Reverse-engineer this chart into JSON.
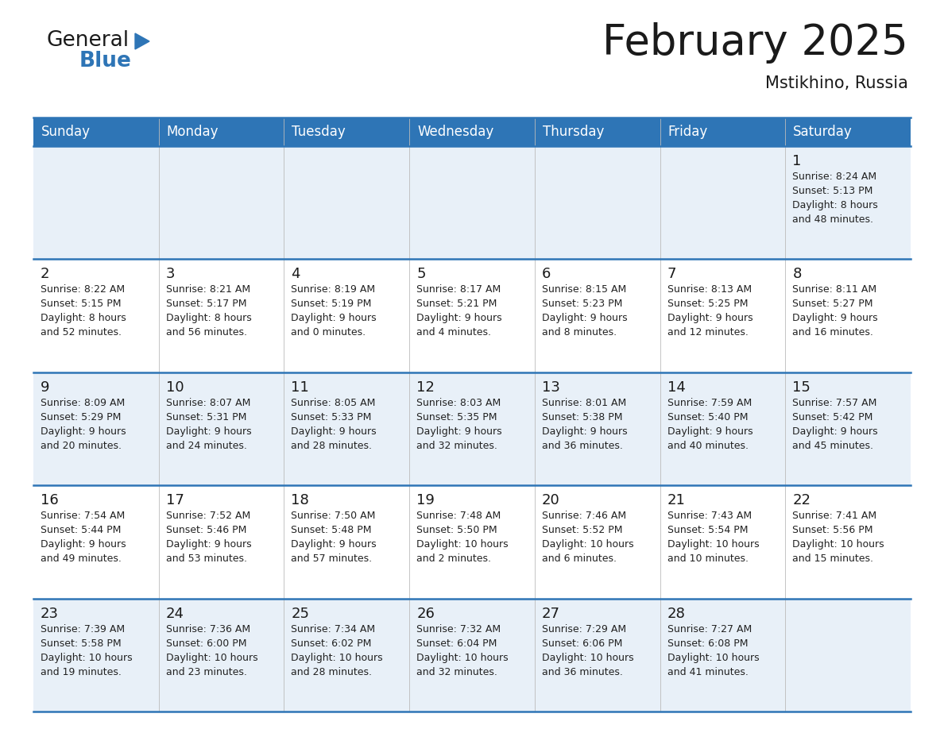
{
  "title": "February 2025",
  "subtitle": "Mstikhino, Russia",
  "header_color": "#2e75b6",
  "header_text_color": "#ffffff",
  "days_of_week": [
    "Sunday",
    "Monday",
    "Tuesday",
    "Wednesday",
    "Thursday",
    "Friday",
    "Saturday"
  ],
  "bg_color": "#ffffff",
  "cell_bg_odd": "#e8f0f8",
  "cell_bg_even": "#ffffff",
  "day_number_color": "#1a1a1a",
  "info_text_color": "#222222",
  "line_color": "#2e75b6",
  "separator_color": "#2e75b6",
  "calendar": [
    [
      null,
      null,
      null,
      null,
      null,
      null,
      {
        "day": 1,
        "sunrise": "8:24 AM",
        "sunset": "5:13 PM",
        "daylight": "8 hours and 48 minutes."
      }
    ],
    [
      {
        "day": 2,
        "sunrise": "8:22 AM",
        "sunset": "5:15 PM",
        "daylight": "8 hours and 52 minutes."
      },
      {
        "day": 3,
        "sunrise": "8:21 AM",
        "sunset": "5:17 PM",
        "daylight": "8 hours and 56 minutes."
      },
      {
        "day": 4,
        "sunrise": "8:19 AM",
        "sunset": "5:19 PM",
        "daylight": "9 hours and 0 minutes."
      },
      {
        "day": 5,
        "sunrise": "8:17 AM",
        "sunset": "5:21 PM",
        "daylight": "9 hours and 4 minutes."
      },
      {
        "day": 6,
        "sunrise": "8:15 AM",
        "sunset": "5:23 PM",
        "daylight": "9 hours and 8 minutes."
      },
      {
        "day": 7,
        "sunrise": "8:13 AM",
        "sunset": "5:25 PM",
        "daylight": "9 hours and 12 minutes."
      },
      {
        "day": 8,
        "sunrise": "8:11 AM",
        "sunset": "5:27 PM",
        "daylight": "9 hours and 16 minutes."
      }
    ],
    [
      {
        "day": 9,
        "sunrise": "8:09 AM",
        "sunset": "5:29 PM",
        "daylight": "9 hours and 20 minutes."
      },
      {
        "day": 10,
        "sunrise": "8:07 AM",
        "sunset": "5:31 PM",
        "daylight": "9 hours and 24 minutes."
      },
      {
        "day": 11,
        "sunrise": "8:05 AM",
        "sunset": "5:33 PM",
        "daylight": "9 hours and 28 minutes."
      },
      {
        "day": 12,
        "sunrise": "8:03 AM",
        "sunset": "5:35 PM",
        "daylight": "9 hours and 32 minutes."
      },
      {
        "day": 13,
        "sunrise": "8:01 AM",
        "sunset": "5:38 PM",
        "daylight": "9 hours and 36 minutes."
      },
      {
        "day": 14,
        "sunrise": "7:59 AM",
        "sunset": "5:40 PM",
        "daylight": "9 hours and 40 minutes."
      },
      {
        "day": 15,
        "sunrise": "7:57 AM",
        "sunset": "5:42 PM",
        "daylight": "9 hours and 45 minutes."
      }
    ],
    [
      {
        "day": 16,
        "sunrise": "7:54 AM",
        "sunset": "5:44 PM",
        "daylight": "9 hours and 49 minutes."
      },
      {
        "day": 17,
        "sunrise": "7:52 AM",
        "sunset": "5:46 PM",
        "daylight": "9 hours and 53 minutes."
      },
      {
        "day": 18,
        "sunrise": "7:50 AM",
        "sunset": "5:48 PM",
        "daylight": "9 hours and 57 minutes."
      },
      {
        "day": 19,
        "sunrise": "7:48 AM",
        "sunset": "5:50 PM",
        "daylight": "10 hours and 2 minutes."
      },
      {
        "day": 20,
        "sunrise": "7:46 AM",
        "sunset": "5:52 PM",
        "daylight": "10 hours and 6 minutes."
      },
      {
        "day": 21,
        "sunrise": "7:43 AM",
        "sunset": "5:54 PM",
        "daylight": "10 hours and 10 minutes."
      },
      {
        "day": 22,
        "sunrise": "7:41 AM",
        "sunset": "5:56 PM",
        "daylight": "10 hours and 15 minutes."
      }
    ],
    [
      {
        "day": 23,
        "sunrise": "7:39 AM",
        "sunset": "5:58 PM",
        "daylight": "10 hours and 19 minutes."
      },
      {
        "day": 24,
        "sunrise": "7:36 AM",
        "sunset": "6:00 PM",
        "daylight": "10 hours and 23 minutes."
      },
      {
        "day": 25,
        "sunrise": "7:34 AM",
        "sunset": "6:02 PM",
        "daylight": "10 hours and 28 minutes."
      },
      {
        "day": 26,
        "sunrise": "7:32 AM",
        "sunset": "6:04 PM",
        "daylight": "10 hours and 32 minutes."
      },
      {
        "day": 27,
        "sunrise": "7:29 AM",
        "sunset": "6:06 PM",
        "daylight": "10 hours and 36 minutes."
      },
      {
        "day": 28,
        "sunrise": "7:27 AM",
        "sunset": "6:08 PM",
        "daylight": "10 hours and 41 minutes."
      },
      null
    ]
  ],
  "title_fontsize": 38,
  "subtitle_fontsize": 15,
  "header_day_fontsize": 12,
  "day_num_fontsize": 13,
  "info_fontsize": 9
}
